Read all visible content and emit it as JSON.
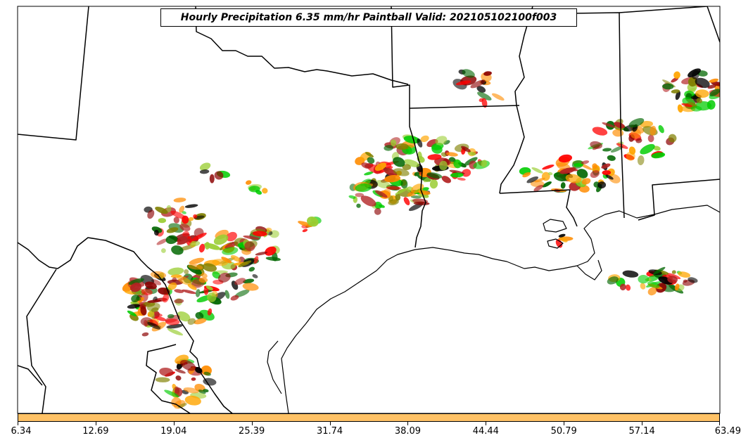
{
  "title": "Hourly Precipitation 6.35 mm/hr Paintball Valid: 202105102100f003",
  "colorbar": {
    "ticks": [
      "6.34",
      "12.69",
      "19.04",
      "25.39",
      "31.74",
      "38.09",
      "44.44",
      "50.79",
      "57.14",
      "63.49"
    ],
    "color": "#ffc266"
  },
  "ensemble_colors": [
    "#000000",
    "#00cc00",
    "#006600",
    "#ff0000",
    "#ff8c00",
    "#ffa500",
    "#8b0000",
    "#808000",
    "#9acd32",
    "#b22222"
  ],
  "map": {
    "region": "south-central United States",
    "features": [
      "state-borders",
      "coastline",
      "precipitation-paintball"
    ]
  }
}
